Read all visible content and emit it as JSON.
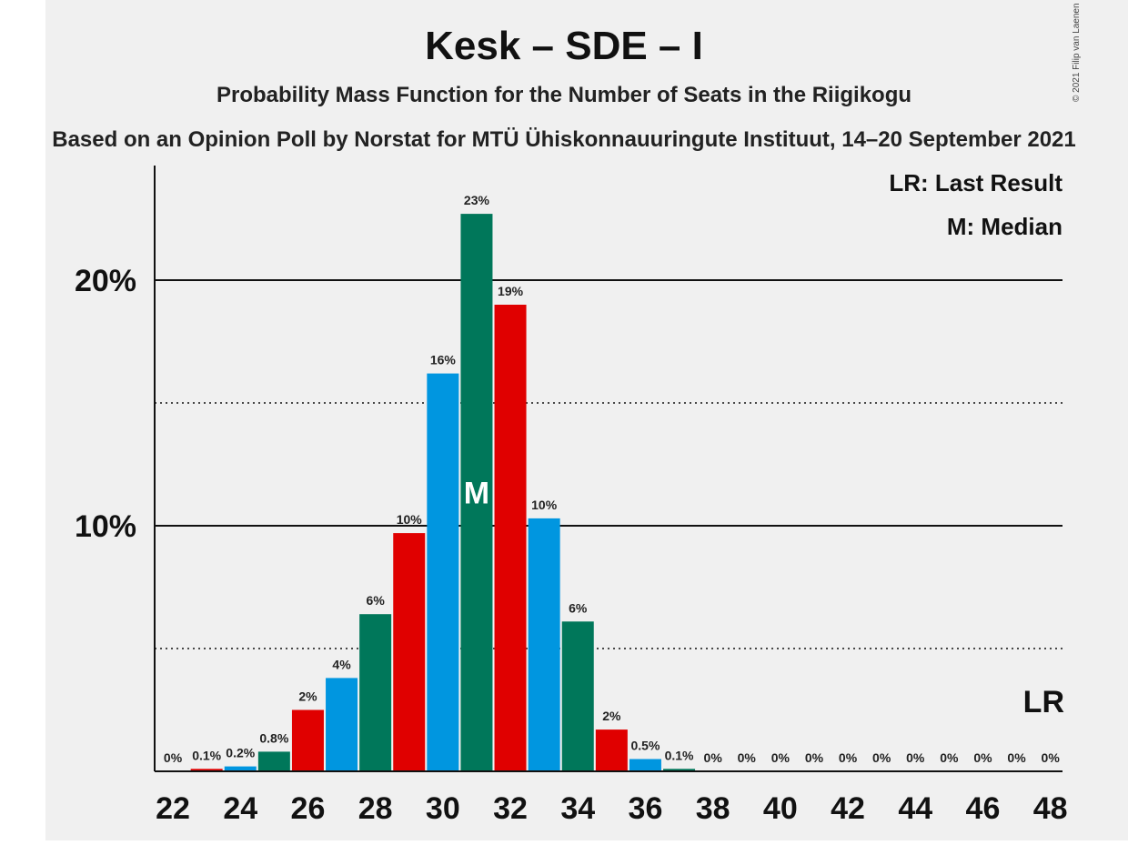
{
  "title": "Kesk – SDE – I",
  "subtitle": "Probability Mass Function for the Number of Seats in the Riigikogu",
  "source": "Based on an Opinion Poll by Norstat for MTÜ Ühiskonnauuringute Instituut, 14–20 September 2021",
  "copyright": "© 2021 Filip van Laenen",
  "legend": {
    "lr": "LR: Last Result",
    "m": "M: Median"
  },
  "markers": {
    "median_label": "M",
    "last_result_label": "LR"
  },
  "colors": {
    "blue": "#0096e0",
    "green": "#00775a",
    "red": "#e00000",
    "background": "#f0f0f0"
  },
  "chart_data": {
    "type": "bar",
    "x": [
      22,
      23,
      24,
      25,
      26,
      27,
      28,
      29,
      30,
      31,
      32,
      33,
      34,
      35,
      36,
      37,
      38,
      39,
      40,
      41,
      42,
      43,
      44,
      45,
      46,
      47,
      48
    ],
    "values": [
      0,
      0.1,
      0.2,
      0.8,
      2.5,
      3.8,
      6.4,
      9.7,
      16.2,
      22.7,
      19.0,
      10.3,
      6.1,
      1.7,
      0.5,
      0.1,
      0,
      0,
      0,
      0,
      0,
      0,
      0,
      0,
      0,
      0,
      0
    ],
    "labels": [
      "0%",
      "0.1%",
      "0.2%",
      "0.8%",
      "2%",
      "4%",
      "6%",
      "10%",
      "16%",
      "23%",
      "19%",
      "10%",
      "6%",
      "2%",
      "0.5%",
      "0.1%",
      "0%",
      "0%",
      "0%",
      "0%",
      "0%",
      "0%",
      "0%",
      "0%",
      "0%",
      "0%",
      "0%"
    ],
    "colors": [
      "green",
      "red",
      "blue",
      "green",
      "red",
      "blue",
      "green",
      "red",
      "blue",
      "green",
      "red",
      "blue",
      "green",
      "red",
      "blue",
      "green",
      "red",
      "blue",
      "green",
      "red",
      "blue",
      "green",
      "red",
      "blue",
      "green",
      "red",
      "blue"
    ],
    "x_tick_labels": [
      "22",
      "24",
      "26",
      "28",
      "30",
      "32",
      "34",
      "36",
      "38",
      "40",
      "42",
      "44",
      "46",
      "48"
    ],
    "y_ticks": [
      {
        "value": 10,
        "label": "10%"
      },
      {
        "value": 20,
        "label": "20%"
      }
    ],
    "y_minor_gridlines": [
      5,
      15
    ],
    "ylim": [
      0,
      24.7
    ],
    "median": 31,
    "last_result": 48
  }
}
